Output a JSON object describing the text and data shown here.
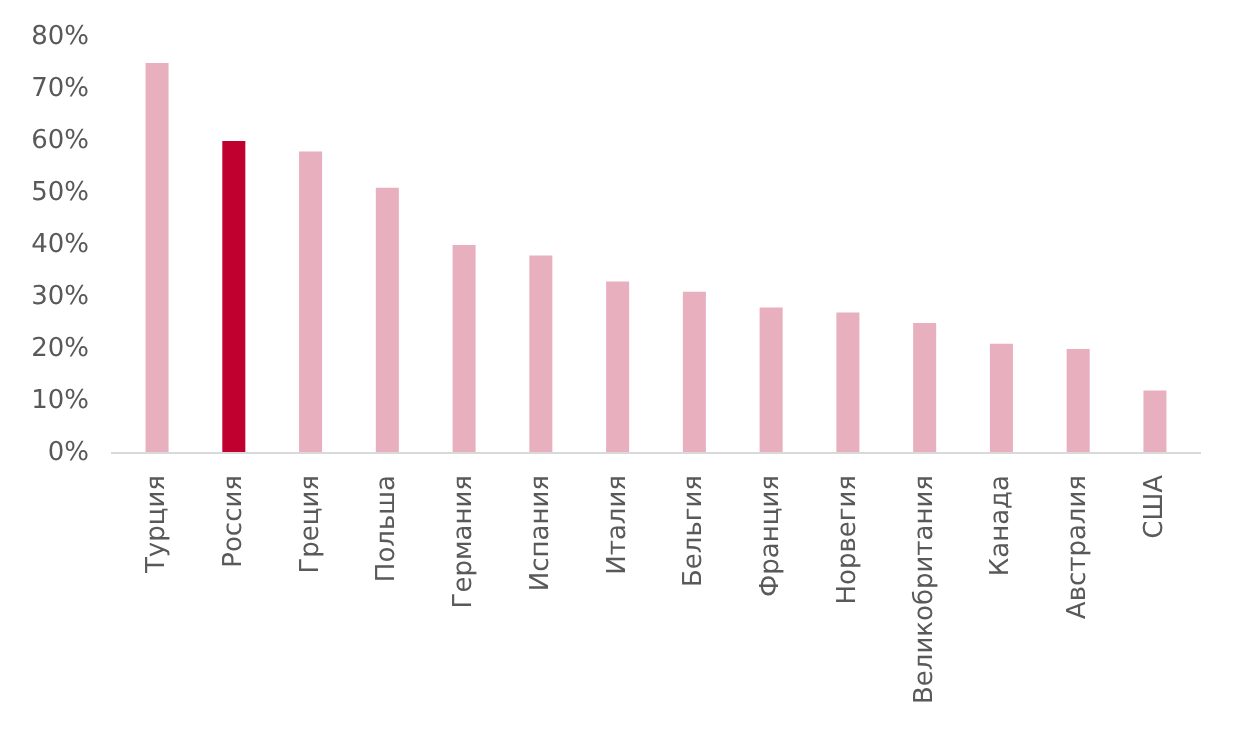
{
  "chart_data": {
    "type": "bar",
    "categories": [
      "Турция",
      "Россия",
      "Греция",
      "Польша",
      "Германия",
      "Испания",
      "Италия",
      "Бельгия",
      "Франция",
      "Норвегия",
      "Великобритания",
      "Канада",
      "Австралия",
      "США"
    ],
    "values": [
      75,
      60,
      58,
      51,
      40,
      38,
      33,
      31,
      28,
      27,
      25,
      21,
      20,
      12
    ],
    "colors": [
      "#e8b0be",
      "#c0002f",
      "#e8b0be",
      "#e8b0be",
      "#e8b0be",
      "#e8b0be",
      "#e8b0be",
      "#e8b0be",
      "#e8b0be",
      "#e8b0be",
      "#e8b0be",
      "#e8b0be",
      "#e8b0be",
      "#e8b0be"
    ],
    "ylim": [
      0,
      80
    ],
    "yticks": [
      {
        "value": 0,
        "label": "0%"
      },
      {
        "value": 10,
        "label": "10%"
      },
      {
        "value": 20,
        "label": "20%"
      },
      {
        "value": 30,
        "label": "30%"
      },
      {
        "value": 40,
        "label": "40%"
      },
      {
        "value": 50,
        "label": "50%"
      },
      {
        "value": 60,
        "label": "60%"
      },
      {
        "value": 70,
        "label": "70%"
      },
      {
        "value": 80,
        "label": "80%"
      }
    ],
    "grid": false
  }
}
